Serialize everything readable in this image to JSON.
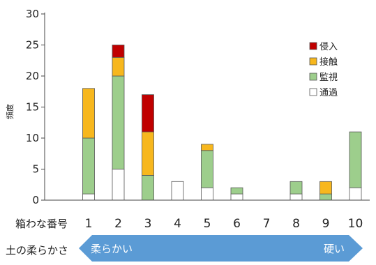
{
  "chart_data": {
    "type": "bar",
    "stacked": true,
    "ylabel": "頻度",
    "ylim": [
      0,
      30
    ],
    "yticks": [
      0,
      5,
      10,
      15,
      20,
      25,
      30
    ],
    "category_axis_label": "箱わな番号",
    "categories": [
      "1",
      "2",
      "3",
      "4",
      "5",
      "6",
      "7",
      "8",
      "9",
      "10"
    ],
    "series": [
      {
        "name": "通過",
        "color": "#ffffff",
        "values": [
          1,
          5,
          0,
          3,
          2,
          1,
          0,
          1,
          0,
          2
        ]
      },
      {
        "name": "監視",
        "color": "#9dce8c",
        "values": [
          9,
          15,
          4,
          0,
          6,
          1,
          0,
          2,
          1,
          9
        ]
      },
      {
        "name": "接触",
        "color": "#f7b71d",
        "values": [
          8,
          3,
          7,
          0,
          1,
          0,
          0,
          0,
          2,
          0
        ]
      },
      {
        "name": "侵入",
        "color": "#c00000",
        "values": [
          0,
          2,
          6,
          0,
          0,
          0,
          0,
          0,
          0,
          0
        ]
      }
    ],
    "legend_position": "top-right",
    "legend_order": [
      "侵入",
      "接触",
      "監視",
      "通過"
    ],
    "grid": false
  },
  "soil_row": {
    "label": "土の柔らかさ",
    "left_text": "柔らかい",
    "right_text": "硬い",
    "arrow_color": "#5b9bd5"
  }
}
